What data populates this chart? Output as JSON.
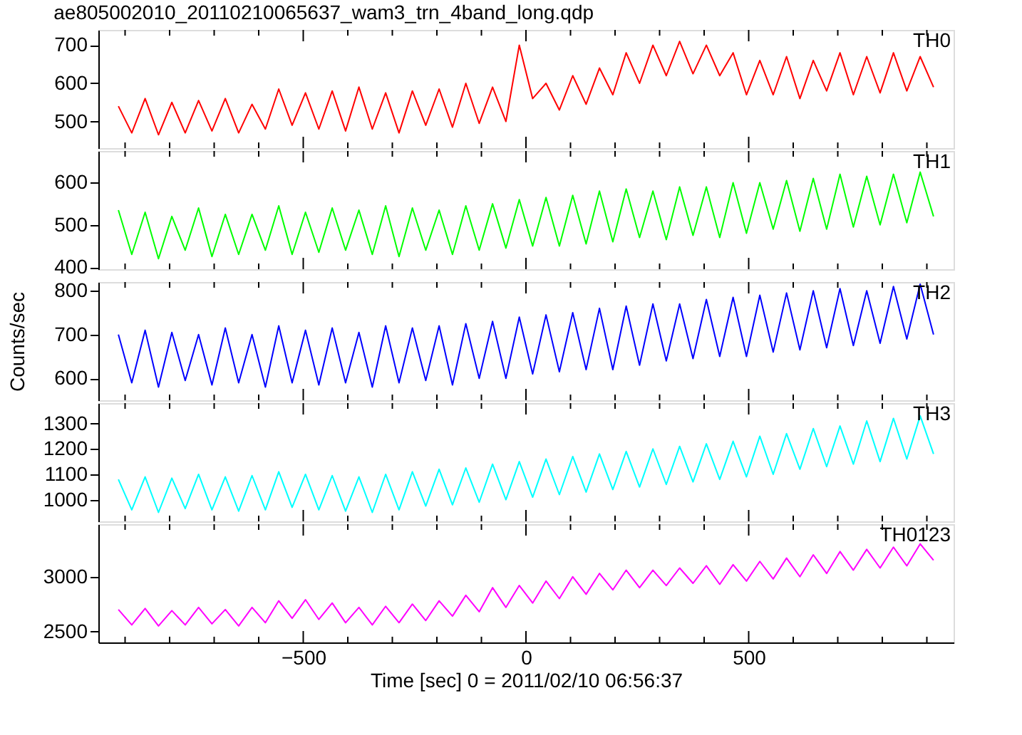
{
  "chart_data": [
    {
      "type": "line",
      "title": "ae805002010_20110210065637_wam3_trn_4band_long.qdp",
      "tick_labels": "y",
      "line_style": "solid",
      "legend": false,
      "grid": false,
      "xlim": [
        -960,
        960
      ],
      "ylim": [
        430,
        740
      ],
      "yticks": [
        500,
        600,
        700
      ],
      "xticks": [
        {
          "value": -900,
          "label": null
        },
        {
          "value": -800,
          "label": null
        },
        {
          "value": -700,
          "label": null
        },
        {
          "value": -600,
          "label": null
        },
        -500,
        {
          "value": -400,
          "label": null
        },
        {
          "value": -300,
          "label": null
        },
        {
          "value": -200,
          "label": null
        },
        {
          "value": -100,
          "label": null
        },
        0,
        {
          "value": 100,
          "label": null
        },
        {
          "value": 200,
          "label": null
        },
        {
          "value": 300,
          "label": null
        },
        {
          "value": 400,
          "label": null
        },
        500,
        {
          "value": 600,
          "label": null
        },
        {
          "value": 700,
          "label": null
        },
        {
          "value": 800,
          "label": null
        },
        {
          "value": 900,
          "label": null
        }
      ],
      "x": [
        -915,
        -885,
        -855,
        -825,
        -795,
        -765,
        -735,
        -705,
        -675,
        -645,
        -615,
        -585,
        -555,
        -525,
        -495,
        -465,
        -435,
        -405,
        -375,
        -345,
        -315,
        -285,
        -255,
        -225,
        -195,
        -165,
        -135,
        -105,
        -75,
        -45,
        -15,
        15,
        45,
        75,
        105,
        135,
        165,
        195,
        225,
        255,
        285,
        315,
        345,
        375,
        405,
        435,
        465,
        495,
        525,
        555,
        585,
        615,
        645,
        675,
        705,
        735,
        765,
        795,
        825,
        855,
        885,
        915
      ],
      "series": [
        {
          "name": "TH0",
          "color": "#ff0000",
          "values": [
            540,
            470,
            560,
            465,
            550,
            470,
            555,
            475,
            560,
            470,
            545,
            480,
            585,
            490,
            575,
            480,
            580,
            475,
            590,
            480,
            575,
            470,
            580,
            490,
            585,
            485,
            600,
            495,
            590,
            500,
            700,
            560,
            600,
            530,
            620,
            545,
            640,
            570,
            680,
            600,
            700,
            620,
            710,
            625,
            700,
            620,
            680,
            570,
            660,
            570,
            670,
            560,
            660,
            580,
            680,
            570,
            670,
            575,
            680,
            580,
            670,
            590
          ]
        }
      ]
    },
    {
      "type": "line",
      "tick_labels": "y",
      "line_style": "solid",
      "legend": false,
      "grid": false,
      "xlim": [
        -960,
        960
      ],
      "ylim": [
        395,
        675
      ],
      "yticks": [
        400,
        500,
        600
      ],
      "xticks": [
        {
          "value": -900,
          "label": null
        },
        {
          "value": -800,
          "label": null
        },
        {
          "value": -700,
          "label": null
        },
        {
          "value": -600,
          "label": null
        },
        -500,
        {
          "value": -400,
          "label": null
        },
        {
          "value": -300,
          "label": null
        },
        {
          "value": -200,
          "label": null
        },
        {
          "value": -100,
          "label": null
        },
        0,
        {
          "value": 100,
          "label": null
        },
        {
          "value": 200,
          "label": null
        },
        {
          "value": 300,
          "label": null
        },
        {
          "value": 400,
          "label": null
        },
        500,
        {
          "value": 600,
          "label": null
        },
        {
          "value": 700,
          "label": null
        },
        {
          "value": 800,
          "label": null
        },
        {
          "value": 900,
          "label": null
        }
      ],
      "x": [
        -915,
        -885,
        -855,
        -825,
        -795,
        -765,
        -735,
        -705,
        -675,
        -645,
        -615,
        -585,
        -555,
        -525,
        -495,
        -465,
        -435,
        -405,
        -375,
        -345,
        -315,
        -285,
        -255,
        -225,
        -195,
        -165,
        -135,
        -105,
        -75,
        -45,
        -15,
        15,
        45,
        75,
        105,
        135,
        165,
        195,
        225,
        255,
        285,
        315,
        345,
        375,
        405,
        435,
        465,
        495,
        525,
        555,
        585,
        615,
        645,
        675,
        705,
        735,
        765,
        795,
        825,
        855,
        885,
        915
      ],
      "series": [
        {
          "name": "TH1",
          "color": "#00ff00",
          "values": [
            535,
            430,
            530,
            420,
            520,
            440,
            540,
            425,
            525,
            430,
            525,
            440,
            545,
            430,
            530,
            435,
            540,
            440,
            535,
            430,
            545,
            425,
            540,
            440,
            535,
            430,
            545,
            440,
            550,
            445,
            560,
            450,
            565,
            450,
            570,
            455,
            580,
            460,
            585,
            470,
            580,
            465,
            590,
            475,
            590,
            470,
            600,
            480,
            600,
            490,
            605,
            485,
            610,
            490,
            620,
            495,
            615,
            500,
            620,
            505,
            625,
            520
          ]
        }
      ]
    },
    {
      "type": "line",
      "ylabel": "Counts/sec",
      "tick_labels": "y",
      "line_style": "solid",
      "legend": false,
      "grid": false,
      "xlim": [
        -960,
        960
      ],
      "ylim": [
        550,
        820
      ],
      "yticks": [
        600,
        700,
        800
      ],
      "xticks": [
        {
          "value": -900,
          "label": null
        },
        {
          "value": -800,
          "label": null
        },
        {
          "value": -700,
          "label": null
        },
        {
          "value": -600,
          "label": null
        },
        -500,
        {
          "value": -400,
          "label": null
        },
        {
          "value": -300,
          "label": null
        },
        {
          "value": -200,
          "label": null
        },
        {
          "value": -100,
          "label": null
        },
        0,
        {
          "value": 100,
          "label": null
        },
        {
          "value": 200,
          "label": null
        },
        {
          "value": 300,
          "label": null
        },
        {
          "value": 400,
          "label": null
        },
        500,
        {
          "value": 600,
          "label": null
        },
        {
          "value": 700,
          "label": null
        },
        {
          "value": 800,
          "label": null
        },
        {
          "value": 900,
          "label": null
        }
      ],
      "x": [
        -915,
        -885,
        -855,
        -825,
        -795,
        -765,
        -735,
        -705,
        -675,
        -645,
        -615,
        -585,
        -555,
        -525,
        -495,
        -465,
        -435,
        -405,
        -375,
        -345,
        -315,
        -285,
        -255,
        -225,
        -195,
        -165,
        -135,
        -105,
        -75,
        -45,
        -15,
        15,
        45,
        75,
        105,
        135,
        165,
        195,
        225,
        255,
        285,
        315,
        345,
        375,
        405,
        435,
        465,
        495,
        525,
        555,
        585,
        615,
        645,
        675,
        705,
        735,
        765,
        795,
        825,
        855,
        885,
        915
      ],
      "series": [
        {
          "name": "TH2",
          "color": "#0000ff",
          "values": [
            700,
            590,
            710,
            580,
            705,
            595,
            700,
            585,
            715,
            590,
            700,
            580,
            720,
            590,
            710,
            585,
            715,
            590,
            705,
            580,
            720,
            590,
            715,
            595,
            720,
            585,
            725,
            600,
            730,
            600,
            740,
            610,
            745,
            615,
            750,
            620,
            760,
            620,
            765,
            630,
            770,
            640,
            770,
            645,
            780,
            650,
            785,
            650,
            790,
            660,
            795,
            665,
            800,
            670,
            805,
            675,
            800,
            680,
            810,
            690,
            815,
            700
          ]
        }
      ]
    },
    {
      "type": "line",
      "tick_labels": "y",
      "line_style": "solid",
      "legend": false,
      "grid": false,
      "xlim": [
        -960,
        960
      ],
      "ylim": [
        915,
        1380
      ],
      "yticks": [
        1000,
        1100,
        1200,
        1300
      ],
      "xticks": [
        {
          "value": -900,
          "label": null
        },
        {
          "value": -800,
          "label": null
        },
        {
          "value": -700,
          "label": null
        },
        {
          "value": -600,
          "label": null
        },
        -500,
        {
          "value": -400,
          "label": null
        },
        {
          "value": -300,
          "label": null
        },
        {
          "value": -200,
          "label": null
        },
        {
          "value": -100,
          "label": null
        },
        0,
        {
          "value": 100,
          "label": null
        },
        {
          "value": 200,
          "label": null
        },
        {
          "value": 300,
          "label": null
        },
        {
          "value": 400,
          "label": null
        },
        500,
        {
          "value": 600,
          "label": null
        },
        {
          "value": 700,
          "label": null
        },
        {
          "value": 800,
          "label": null
        },
        {
          "value": 900,
          "label": null
        }
      ],
      "x": [
        -915,
        -885,
        -855,
        -825,
        -795,
        -765,
        -735,
        -705,
        -675,
        -645,
        -615,
        -585,
        -555,
        -525,
        -495,
        -465,
        -435,
        -405,
        -375,
        -345,
        -315,
        -285,
        -255,
        -225,
        -195,
        -165,
        -135,
        -105,
        -75,
        -45,
        -15,
        15,
        45,
        75,
        105,
        135,
        165,
        195,
        225,
        255,
        285,
        315,
        345,
        375,
        405,
        435,
        465,
        495,
        525,
        555,
        585,
        615,
        645,
        675,
        705,
        735,
        765,
        795,
        825,
        855,
        885,
        915
      ],
      "series": [
        {
          "name": "TH3",
          "color": "#00ffff",
          "values": [
            1080,
            960,
            1090,
            950,
            1085,
            965,
            1100,
            960,
            1090,
            955,
            1095,
            960,
            1110,
            970,
            1100,
            960,
            1095,
            955,
            1090,
            950,
            1100,
            960,
            1110,
            975,
            1120,
            980,
            1125,
            990,
            1140,
            1000,
            1150,
            1010,
            1160,
            1020,
            1170,
            1030,
            1180,
            1040,
            1190,
            1050,
            1200,
            1060,
            1210,
            1070,
            1220,
            1080,
            1230,
            1090,
            1250,
            1100,
            1260,
            1120,
            1280,
            1130,
            1290,
            1140,
            1310,
            1150,
            1320,
            1160,
            1330,
            1180
          ]
        }
      ]
    },
    {
      "type": "line",
      "xlabel": "Time [sec] 0 = 2011/02/10 06:56:37",
      "line_style": "solid",
      "legend": false,
      "grid": false,
      "xlim": [
        -960,
        960
      ],
      "ylim": [
        2400,
        3480
      ],
      "yticks": [
        2500,
        3000
      ],
      "xticks": [
        {
          "value": -900,
          "label": null
        },
        {
          "value": -800,
          "label": null
        },
        {
          "value": -700,
          "label": null
        },
        {
          "value": -600,
          "label": null
        },
        -500,
        {
          "value": -400,
          "label": null
        },
        {
          "value": -300,
          "label": null
        },
        {
          "value": -200,
          "label": null
        },
        {
          "value": -100,
          "label": null
        },
        0,
        {
          "value": 100,
          "label": null
        },
        {
          "value": 200,
          "label": null
        },
        {
          "value": 300,
          "label": null
        },
        {
          "value": 400,
          "label": null
        },
        500,
        {
          "value": 600,
          "label": null
        },
        {
          "value": 700,
          "label": null
        },
        {
          "value": 800,
          "label": null
        },
        {
          "value": 900,
          "label": null
        }
      ],
      "x": [
        -915,
        -885,
        -855,
        -825,
        -795,
        -765,
        -735,
        -705,
        -675,
        -645,
        -615,
        -585,
        -555,
        -525,
        -495,
        -465,
        -435,
        -405,
        -375,
        -345,
        -315,
        -285,
        -255,
        -225,
        -195,
        -165,
        -135,
        -105,
        -75,
        -45,
        -15,
        15,
        45,
        75,
        105,
        135,
        165,
        195,
        225,
        255,
        285,
        315,
        345,
        375,
        405,
        435,
        465,
        495,
        525,
        555,
        585,
        615,
        645,
        675,
        705,
        735,
        765,
        795,
        825,
        855,
        885,
        915
      ],
      "series": [
        {
          "name": "TH0123",
          "color": "#ff00ff",
          "values": [
            2700,
            2560,
            2710,
            2550,
            2690,
            2560,
            2720,
            2570,
            2700,
            2550,
            2720,
            2580,
            2780,
            2620,
            2790,
            2610,
            2760,
            2580,
            2720,
            2560,
            2730,
            2580,
            2750,
            2600,
            2780,
            2640,
            2830,
            2680,
            2900,
            2720,
            2920,
            2760,
            2960,
            2800,
            3000,
            2840,
            3030,
            2880,
            3060,
            2900,
            3060,
            2920,
            3080,
            2940,
            3100,
            2930,
            3110,
            2960,
            3140,
            2980,
            3170,
            3000,
            3200,
            3030,
            3230,
            3060,
            3250,
            3080,
            3270,
            3100,
            3300,
            3150
          ]
        }
      ]
    }
  ]
}
